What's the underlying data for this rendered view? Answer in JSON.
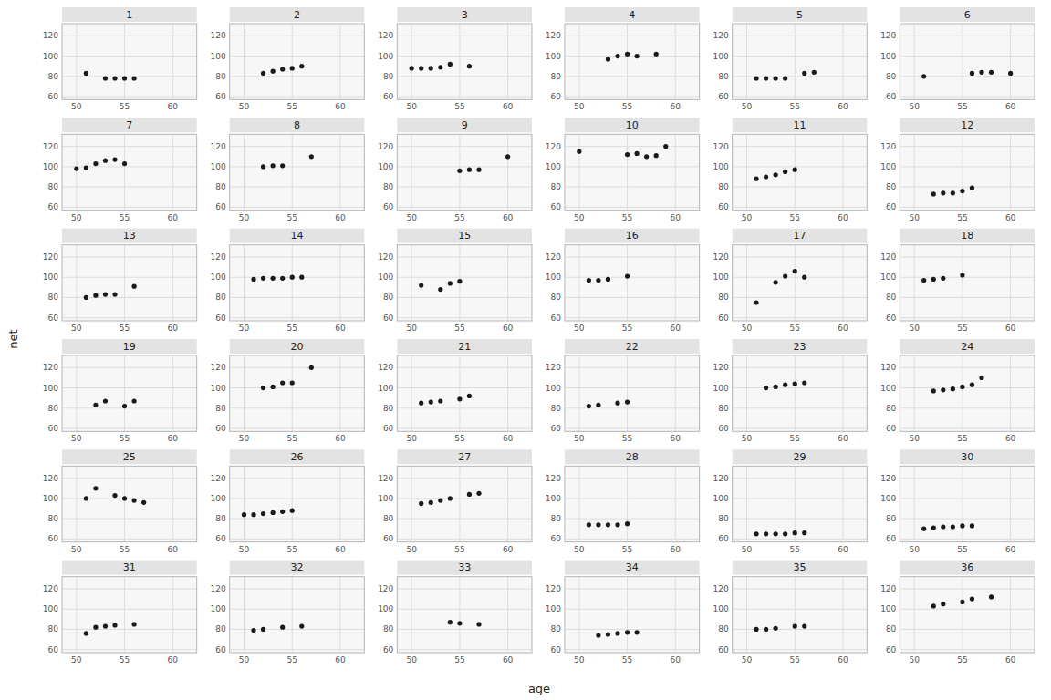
{
  "x_label": "age",
  "y_label": "net",
  "chart_data": [
    {
      "type": "scatter",
      "title": "1",
      "x": [
        51,
        53,
        54,
        55,
        56
      ],
      "values": [
        83,
        78,
        78,
        78,
        78
      ],
      "xlim": [
        48.5,
        62.5
      ],
      "ylim": [
        57,
        132
      ],
      "xticks": [
        50,
        55,
        60
      ],
      "yticks": [
        60,
        80,
        100,
        120
      ],
      "grid": true,
      "color": "#1a1a1a"
    },
    {
      "type": "scatter",
      "title": "2",
      "x": [
        52,
        53,
        54,
        55,
        56
      ],
      "values": [
        83,
        85,
        87,
        88,
        90
      ],
      "xlim": [
        48.5,
        62.5
      ],
      "ylim": [
        57,
        132
      ],
      "xticks": [
        50,
        55,
        60
      ],
      "yticks": [
        60,
        80,
        100,
        120
      ],
      "grid": true,
      "color": "#1a1a1a"
    },
    {
      "type": "scatter",
      "title": "3",
      "x": [
        50,
        51,
        52,
        53,
        54,
        56
      ],
      "values": [
        88,
        88,
        88,
        89,
        92,
        90
      ],
      "xlim": [
        48.5,
        62.5
      ],
      "ylim": [
        57,
        132
      ],
      "xticks": [
        50,
        55,
        60
      ],
      "yticks": [
        60,
        80,
        100,
        120
      ],
      "grid": true,
      "color": "#1a1a1a"
    },
    {
      "type": "scatter",
      "title": "4",
      "x": [
        53,
        54,
        55,
        56,
        58
      ],
      "values": [
        97,
        100,
        102,
        100,
        102
      ],
      "xlim": [
        48.5,
        62.5
      ],
      "ylim": [
        57,
        132
      ],
      "xticks": [
        50,
        55,
        60
      ],
      "yticks": [
        60,
        80,
        100,
        120
      ],
      "grid": true,
      "color": "#1a1a1a"
    },
    {
      "type": "scatter",
      "title": "5",
      "x": [
        51,
        52,
        53,
        54,
        56,
        57
      ],
      "values": [
        78,
        78,
        78,
        78,
        83,
        84
      ],
      "xlim": [
        48.5,
        62.5
      ],
      "ylim": [
        57,
        132
      ],
      "xticks": [
        50,
        55,
        60
      ],
      "yticks": [
        60,
        80,
        100,
        120
      ],
      "grid": true,
      "color": "#1a1a1a"
    },
    {
      "type": "scatter",
      "title": "6",
      "x": [
        51,
        56,
        57,
        58,
        60
      ],
      "values": [
        80,
        83,
        84,
        84,
        83
      ],
      "xlim": [
        48.5,
        62.5
      ],
      "ylim": [
        57,
        132
      ],
      "xticks": [
        50,
        55,
        60
      ],
      "yticks": [
        60,
        80,
        100,
        120
      ],
      "grid": true,
      "color": "#1a1a1a"
    },
    {
      "type": "scatter",
      "title": "7",
      "x": [
        50,
        51,
        52,
        53,
        54,
        55
      ],
      "values": [
        98,
        99,
        103,
        106,
        107,
        103
      ],
      "xlim": [
        48.5,
        62.5
      ],
      "ylim": [
        57,
        132
      ],
      "xticks": [
        50,
        55,
        60
      ],
      "yticks": [
        60,
        80,
        100,
        120
      ],
      "grid": true,
      "color": "#1a1a1a"
    },
    {
      "type": "scatter",
      "title": "8",
      "x": [
        52,
        53,
        54,
        57
      ],
      "values": [
        100,
        101,
        101,
        110
      ],
      "xlim": [
        48.5,
        62.5
      ],
      "ylim": [
        57,
        132
      ],
      "xticks": [
        50,
        55,
        60
      ],
      "yticks": [
        60,
        80,
        100,
        120
      ],
      "grid": true,
      "color": "#1a1a1a"
    },
    {
      "type": "scatter",
      "title": "9",
      "x": [
        55,
        56,
        57,
        60
      ],
      "values": [
        96,
        97,
        97,
        110
      ],
      "xlim": [
        48.5,
        62.5
      ],
      "ylim": [
        57,
        132
      ],
      "xticks": [
        50,
        55,
        60
      ],
      "yticks": [
        60,
        80,
        100,
        120
      ],
      "grid": true,
      "color": "#1a1a1a"
    },
    {
      "type": "scatter",
      "title": "10",
      "x": [
        50,
        55,
        56,
        57,
        58,
        59
      ],
      "values": [
        115,
        112,
        113,
        110,
        111,
        120
      ],
      "xlim": [
        48.5,
        62.5
      ],
      "ylim": [
        57,
        132
      ],
      "xticks": [
        50,
        55,
        60
      ],
      "yticks": [
        60,
        80,
        100,
        120
      ],
      "grid": true,
      "color": "#1a1a1a"
    },
    {
      "type": "scatter",
      "title": "11",
      "x": [
        51,
        52,
        53,
        54,
        55
      ],
      "values": [
        88,
        90,
        92,
        95,
        97
      ],
      "xlim": [
        48.5,
        62.5
      ],
      "ylim": [
        57,
        132
      ],
      "xticks": [
        50,
        55,
        60
      ],
      "yticks": [
        60,
        80,
        100,
        120
      ],
      "grid": true,
      "color": "#1a1a1a"
    },
    {
      "type": "scatter",
      "title": "12",
      "x": [
        52,
        53,
        54,
        55,
        56
      ],
      "values": [
        73,
        74,
        74,
        76,
        79
      ],
      "xlim": [
        48.5,
        62.5
      ],
      "ylim": [
        57,
        132
      ],
      "xticks": [
        50,
        55,
        60
      ],
      "yticks": [
        60,
        80,
        100,
        120
      ],
      "grid": true,
      "color": "#1a1a1a"
    },
    {
      "type": "scatter",
      "title": "13",
      "x": [
        51,
        52,
        53,
        54,
        56
      ],
      "values": [
        80,
        82,
        83,
        83,
        91
      ],
      "xlim": [
        48.5,
        62.5
      ],
      "ylim": [
        57,
        132
      ],
      "xticks": [
        50,
        55,
        60
      ],
      "yticks": [
        60,
        80,
        100,
        120
      ],
      "grid": true,
      "color": "#1a1a1a"
    },
    {
      "type": "scatter",
      "title": "14",
      "x": [
        51,
        52,
        53,
        54,
        55,
        56
      ],
      "values": [
        98,
        99,
        99,
        99,
        100,
        100
      ],
      "xlim": [
        48.5,
        62.5
      ],
      "ylim": [
        57,
        132
      ],
      "xticks": [
        50,
        55,
        60
      ],
      "yticks": [
        60,
        80,
        100,
        120
      ],
      "grid": true,
      "color": "#1a1a1a"
    },
    {
      "type": "scatter",
      "title": "15",
      "x": [
        51,
        53,
        54,
        55
      ],
      "values": [
        92,
        88,
        94,
        96
      ],
      "xlim": [
        48.5,
        62.5
      ],
      "ylim": [
        57,
        132
      ],
      "xticks": [
        50,
        55,
        60
      ],
      "yticks": [
        60,
        80,
        100,
        120
      ],
      "grid": true,
      "color": "#1a1a1a"
    },
    {
      "type": "scatter",
      "title": "16",
      "x": [
        51,
        52,
        53,
        55
      ],
      "values": [
        97,
        97,
        98,
        101
      ],
      "xlim": [
        48.5,
        62.5
      ],
      "ylim": [
        57,
        132
      ],
      "xticks": [
        50,
        55,
        60
      ],
      "yticks": [
        60,
        80,
        100,
        120
      ],
      "grid": true,
      "color": "#1a1a1a"
    },
    {
      "type": "scatter",
      "title": "17",
      "x": [
        51,
        53,
        54,
        55,
        56
      ],
      "values": [
        75,
        95,
        101,
        106,
        100
      ],
      "xlim": [
        48.5,
        62.5
      ],
      "ylim": [
        57,
        132
      ],
      "xticks": [
        50,
        55,
        60
      ],
      "yticks": [
        60,
        80,
        100,
        120
      ],
      "grid": true,
      "color": "#1a1a1a"
    },
    {
      "type": "scatter",
      "title": "18",
      "x": [
        51,
        52,
        53,
        55
      ],
      "values": [
        97,
        98,
        99,
        102
      ],
      "xlim": [
        48.5,
        62.5
      ],
      "ylim": [
        57,
        132
      ],
      "xticks": [
        50,
        55,
        60
      ],
      "yticks": [
        60,
        80,
        100,
        120
      ],
      "grid": true,
      "color": "#1a1a1a"
    },
    {
      "type": "scatter",
      "title": "19",
      "x": [
        52,
        53,
        55,
        56
      ],
      "values": [
        83,
        87,
        82,
        87
      ],
      "xlim": [
        48.5,
        62.5
      ],
      "ylim": [
        57,
        132
      ],
      "xticks": [
        50,
        55,
        60
      ],
      "yticks": [
        60,
        80,
        100,
        120
      ],
      "grid": true,
      "color": "#1a1a1a"
    },
    {
      "type": "scatter",
      "title": "20",
      "x": [
        52,
        53,
        54,
        55,
        57
      ],
      "values": [
        100,
        101,
        105,
        105,
        120
      ],
      "xlim": [
        48.5,
        62.5
      ],
      "ylim": [
        57,
        132
      ],
      "xticks": [
        50,
        55,
        60
      ],
      "yticks": [
        60,
        80,
        100,
        120
      ],
      "grid": true,
      "color": "#1a1a1a"
    },
    {
      "type": "scatter",
      "title": "21",
      "x": [
        51,
        52,
        53,
        55,
        56
      ],
      "values": [
        85,
        86,
        87,
        89,
        92
      ],
      "xlim": [
        48.5,
        62.5
      ],
      "ylim": [
        57,
        132
      ],
      "xticks": [
        50,
        55,
        60
      ],
      "yticks": [
        60,
        80,
        100,
        120
      ],
      "grid": true,
      "color": "#1a1a1a"
    },
    {
      "type": "scatter",
      "title": "22",
      "x": [
        51,
        52,
        54,
        55
      ],
      "values": [
        82,
        83,
        85,
        86
      ],
      "xlim": [
        48.5,
        62.5
      ],
      "ylim": [
        57,
        132
      ],
      "xticks": [
        50,
        55,
        60
      ],
      "yticks": [
        60,
        80,
        100,
        120
      ],
      "grid": true,
      "color": "#1a1a1a"
    },
    {
      "type": "scatter",
      "title": "23",
      "x": [
        52,
        53,
        54,
        55,
        56
      ],
      "values": [
        100,
        101,
        103,
        104,
        105
      ],
      "xlim": [
        48.5,
        62.5
      ],
      "ylim": [
        57,
        132
      ],
      "xticks": [
        50,
        55,
        60
      ],
      "yticks": [
        60,
        80,
        100,
        120
      ],
      "grid": true,
      "color": "#1a1a1a"
    },
    {
      "type": "scatter",
      "title": "24",
      "x": [
        52,
        53,
        54,
        55,
        56,
        57
      ],
      "values": [
        97,
        98,
        99,
        101,
        103,
        110
      ],
      "xlim": [
        48.5,
        62.5
      ],
      "ylim": [
        57,
        132
      ],
      "xticks": [
        50,
        55,
        60
      ],
      "yticks": [
        60,
        80,
        100,
        120
      ],
      "grid": true,
      "color": "#1a1a1a"
    },
    {
      "type": "scatter",
      "title": "25",
      "x": [
        51,
        52,
        54,
        55,
        56,
        57
      ],
      "values": [
        100,
        110,
        103,
        100,
        98,
        96
      ],
      "xlim": [
        48.5,
        62.5
      ],
      "ylim": [
        57,
        132
      ],
      "xticks": [
        50,
        55,
        60
      ],
      "yticks": [
        60,
        80,
        100,
        120
      ],
      "grid": true,
      "color": "#1a1a1a"
    },
    {
      "type": "scatter",
      "title": "26",
      "x": [
        50,
        51,
        52,
        53,
        54,
        55
      ],
      "values": [
        84,
        84,
        85,
        86,
        87,
        88
      ],
      "xlim": [
        48.5,
        62.5
      ],
      "ylim": [
        57,
        132
      ],
      "xticks": [
        50,
        55,
        60
      ],
      "yticks": [
        60,
        80,
        100,
        120
      ],
      "grid": true,
      "color": "#1a1a1a"
    },
    {
      "type": "scatter",
      "title": "27",
      "x": [
        51,
        52,
        53,
        54,
        56,
        57
      ],
      "values": [
        95,
        96,
        98,
        100,
        104,
        105
      ],
      "xlim": [
        48.5,
        62.5
      ],
      "ylim": [
        57,
        132
      ],
      "xticks": [
        50,
        55,
        60
      ],
      "yticks": [
        60,
        80,
        100,
        120
      ],
      "grid": true,
      "color": "#1a1a1a"
    },
    {
      "type": "scatter",
      "title": "28",
      "x": [
        51,
        52,
        53,
        54,
        55
      ],
      "values": [
        74,
        74,
        74,
        74,
        75
      ],
      "xlim": [
        48.5,
        62.5
      ],
      "ylim": [
        57,
        132
      ],
      "xticks": [
        50,
        55,
        60
      ],
      "yticks": [
        60,
        80,
        100,
        120
      ],
      "grid": true,
      "color": "#1a1a1a"
    },
    {
      "type": "scatter",
      "title": "29",
      "x": [
        51,
        52,
        53,
        54,
        55,
        56
      ],
      "values": [
        65,
        65,
        65,
        65,
        66,
        66
      ],
      "xlim": [
        48.5,
        62.5
      ],
      "ylim": [
        57,
        132
      ],
      "xticks": [
        50,
        55,
        60
      ],
      "yticks": [
        60,
        80,
        100,
        120
      ],
      "grid": true,
      "color": "#1a1a1a"
    },
    {
      "type": "scatter",
      "title": "30",
      "x": [
        51,
        52,
        53,
        54,
        55,
        56
      ],
      "values": [
        70,
        71,
        72,
        72,
        73,
        73
      ],
      "xlim": [
        48.5,
        62.5
      ],
      "ylim": [
        57,
        132
      ],
      "xticks": [
        50,
        55,
        60
      ],
      "yticks": [
        60,
        80,
        100,
        120
      ],
      "grid": true,
      "color": "#1a1a1a"
    },
    {
      "type": "scatter",
      "title": "31",
      "x": [
        51,
        52,
        53,
        54,
        56
      ],
      "values": [
        76,
        82,
        83,
        84,
        85
      ],
      "xlim": [
        48.5,
        62.5
      ],
      "ylim": [
        57,
        132
      ],
      "xticks": [
        50,
        55,
        60
      ],
      "yticks": [
        60,
        80,
        100,
        120
      ],
      "grid": true,
      "color": "#1a1a1a"
    },
    {
      "type": "scatter",
      "title": "32",
      "x": [
        51,
        52,
        54,
        56
      ],
      "values": [
        79,
        80,
        82,
        83
      ],
      "xlim": [
        48.5,
        62.5
      ],
      "ylim": [
        57,
        132
      ],
      "xticks": [
        50,
        55,
        60
      ],
      "yticks": [
        60,
        80,
        100,
        120
      ],
      "grid": true,
      "color": "#1a1a1a"
    },
    {
      "type": "scatter",
      "title": "33",
      "x": [
        54,
        55,
        57
      ],
      "values": [
        87,
        86,
        85
      ],
      "xlim": [
        48.5,
        62.5
      ],
      "ylim": [
        57,
        132
      ],
      "xticks": [
        50,
        55,
        60
      ],
      "yticks": [
        60,
        80,
        100,
        120
      ],
      "grid": true,
      "color": "#1a1a1a"
    },
    {
      "type": "scatter",
      "title": "34",
      "x": [
        52,
        53,
        54,
        55,
        56
      ],
      "values": [
        74,
        75,
        76,
        77,
        77
      ],
      "xlim": [
        48.5,
        62.5
      ],
      "ylim": [
        57,
        132
      ],
      "xticks": [
        50,
        55,
        60
      ],
      "yticks": [
        60,
        80,
        100,
        120
      ],
      "grid": true,
      "color": "#1a1a1a"
    },
    {
      "type": "scatter",
      "title": "35",
      "x": [
        51,
        52,
        53,
        55,
        56
      ],
      "values": [
        80,
        80,
        81,
        83,
        83
      ],
      "xlim": [
        48.5,
        62.5
      ],
      "ylim": [
        57,
        132
      ],
      "xticks": [
        50,
        55,
        60
      ],
      "yticks": [
        60,
        80,
        100,
        120
      ],
      "grid": true,
      "color": "#1a1a1a"
    },
    {
      "type": "scatter",
      "title": "36",
      "x": [
        52,
        53,
        55,
        56,
        58
      ],
      "values": [
        103,
        105,
        107,
        110,
        112
      ],
      "xlim": [
        48.5,
        62.5
      ],
      "ylim": [
        57,
        132
      ],
      "xticks": [
        50,
        55,
        60
      ],
      "yticks": [
        60,
        80,
        100,
        120
      ],
      "grid": true,
      "color": "#1a1a1a"
    }
  ]
}
